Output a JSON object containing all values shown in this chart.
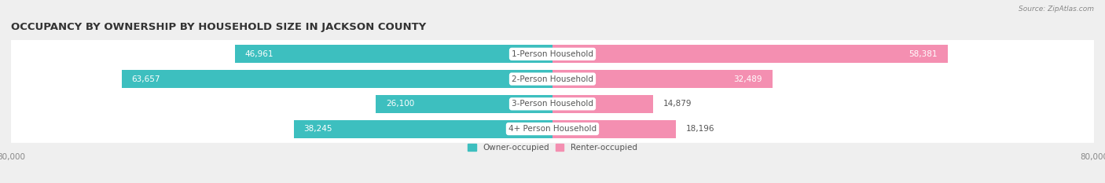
{
  "title": "OCCUPANCY BY OWNERSHIP BY HOUSEHOLD SIZE IN JACKSON COUNTY",
  "source": "Source: ZipAtlas.com",
  "categories": [
    "1-Person Household",
    "2-Person Household",
    "3-Person Household",
    "4+ Person Household"
  ],
  "owner_values": [
    46961,
    63657,
    26100,
    38245
  ],
  "renter_values": [
    58381,
    32489,
    14879,
    18196
  ],
  "owner_color": "#3dbfbf",
  "renter_color": "#f48fb1",
  "owner_label": "Owner-occupied",
  "renter_label": "Renter-occupied",
  "xlim": 80000,
  "background_color": "#efefef",
  "bar_background_color": "#ffffff",
  "title_fontsize": 9.5,
  "label_fontsize": 7.5,
  "value_fontsize": 7.5,
  "source_fontsize": 6.5,
  "bar_height": 0.72,
  "category_label_color": "#555555",
  "value_color_inside": "#ffffff",
  "value_color_outside": "#555555",
  "tick_color": "#888888",
  "title_color": "#333333"
}
